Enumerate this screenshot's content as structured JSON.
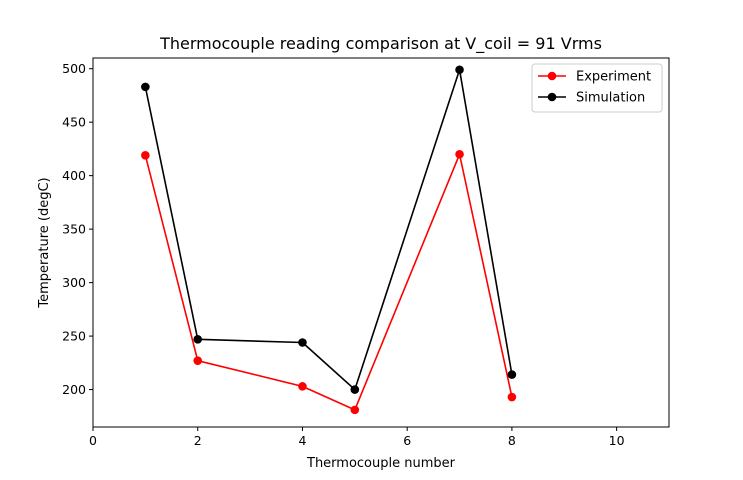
{
  "chart_data": {
    "type": "line",
    "title": "Thermocouple reading comparison at V_coil = 91 Vrms",
    "xlabel": "Thermocouple number",
    "ylabel": "Temperature (degC)",
    "xlim": [
      0,
      11
    ],
    "ylim": [
      165,
      510
    ],
    "xticks": [
      0,
      2,
      4,
      6,
      8,
      10
    ],
    "yticks": [
      200,
      250,
      300,
      350,
      400,
      450,
      500
    ],
    "grid": false,
    "legend_position": "top-right",
    "series": [
      {
        "name": "Experiment",
        "color": "#ff0000",
        "marker": "circle",
        "x": [
          1,
          2,
          4,
          5,
          7,
          8
        ],
        "y": [
          419,
          227,
          203,
          181,
          420,
          193
        ]
      },
      {
        "name": "Simulation",
        "color": "#000000",
        "marker": "circle",
        "x": [
          1,
          2,
          4,
          5,
          7,
          8
        ],
        "y": [
          483,
          247,
          244,
          200,
          499,
          214
        ]
      }
    ]
  }
}
